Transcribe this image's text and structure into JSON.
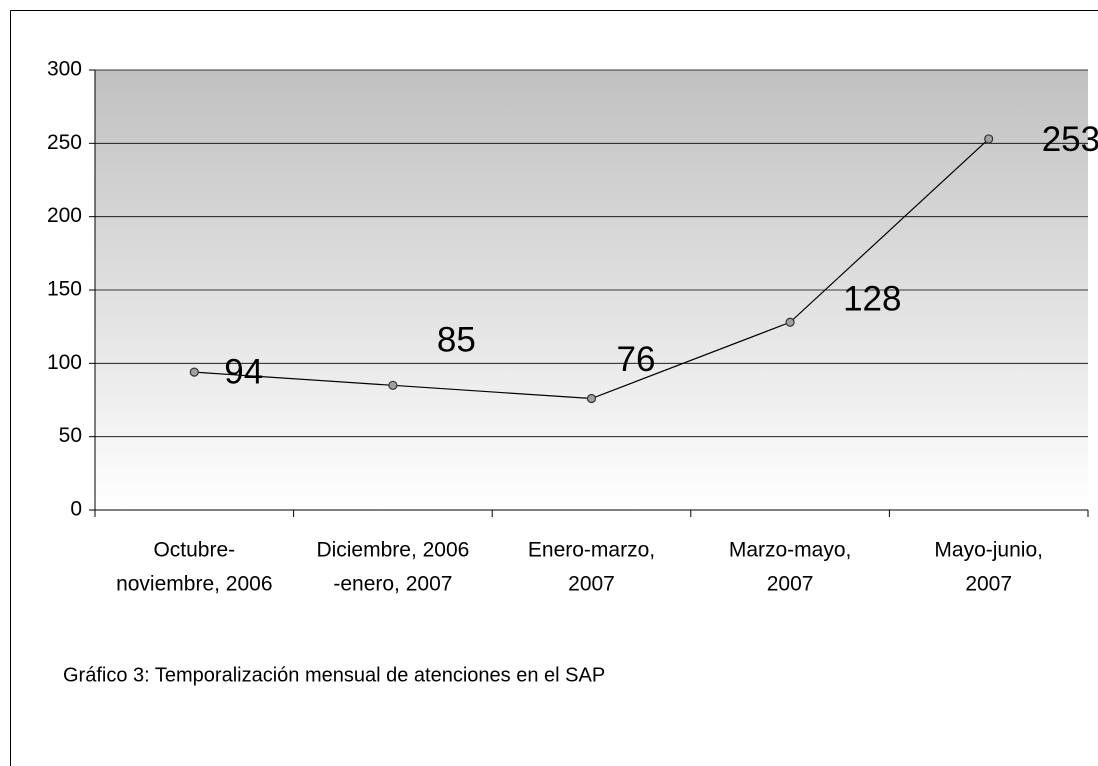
{
  "chart_data": {
    "type": "line",
    "categories": [
      [
        "Octubre-",
        "noviembre, 2006"
      ],
      [
        "Diciembre, 2006",
        "-enero, 2007"
      ],
      [
        "Enero-marzo,",
        "2007"
      ],
      [
        "Marzo-mayo,",
        "2007"
      ],
      [
        "Mayo-junio,",
        "2007"
      ]
    ],
    "values": [
      94,
      85,
      76,
      128,
      253
    ],
    "color": "#000000",
    "marker_color": "#a0a0a0",
    "ylim": [
      0,
      300
    ],
    "yticks": [
      0,
      50,
      100,
      150,
      200,
      250,
      300
    ],
    "grid": true,
    "caption": "Gráfico 3: Temporalización mensual de atenciones en el SAP"
  }
}
